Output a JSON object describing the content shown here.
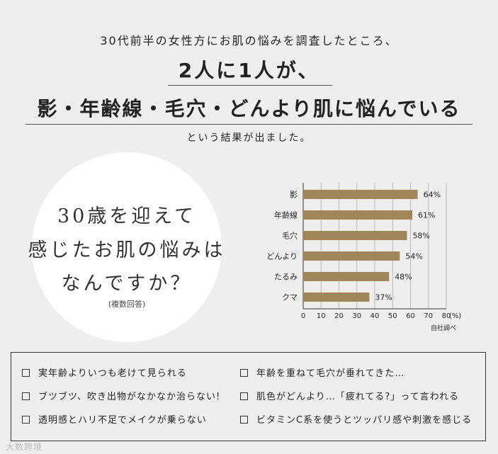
{
  "header": {
    "intro": "30代前半の女性方にお肌の悩みを調査したところ、",
    "headline1": "2人に1人が、",
    "headline2": "影・年齢線・毛穴・どんより肌に悩んでいる",
    "outro": "という結果が出ました。"
  },
  "question": {
    "line1": "30歳を迎えて",
    "line2": "感じたお肌の悩みは",
    "line3": "なんですか？",
    "note": "(複数回答)"
  },
  "chart_data": {
    "type": "bar",
    "orientation": "horizontal",
    "categories": [
      "影",
      "年齢線",
      "毛穴",
      "どんより",
      "たるみ",
      "クマ"
    ],
    "values": [
      64,
      61,
      58,
      54,
      48,
      37
    ],
    "value_labels": [
      "64%",
      "61%",
      "58%",
      "54%",
      "48%",
      "37%"
    ],
    "xlim": [
      0,
      80
    ],
    "xticks": [
      "0",
      "10",
      "20",
      "30",
      "40",
      "50",
      "60",
      "70",
      "80"
    ],
    "unit_label": "(%)",
    "source": "自社調べ",
    "bar_color": "#a08658",
    "grid": true
  },
  "checklist": [
    "実年齢よりいつも老けて見られる",
    "年齢を重ねて毛穴が垂れてきた…",
    "ブツブツ、吹き出物がなかなか治らない!",
    "肌色がどんより…「疲れてる?」って言われる",
    "透明感とハリ不足でメイクが乗らない",
    "ビタミンC系を使うとツッパリ感や刺激を感じる"
  ],
  "watermark": "大数跨境"
}
